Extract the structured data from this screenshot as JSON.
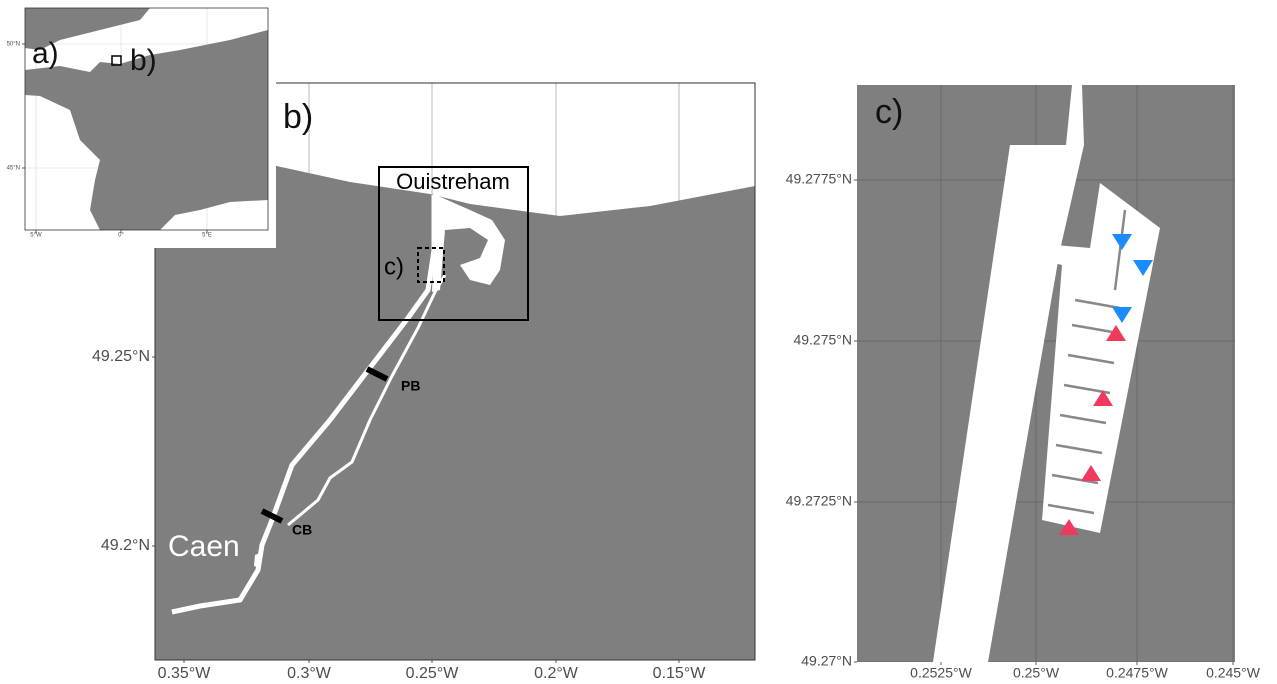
{
  "panels": {
    "a": {
      "label": "a)",
      "inset_label": "b)",
      "xticks": [
        "5°W",
        "0°",
        "5°E"
      ],
      "yticks": [
        "50°N",
        "45°N"
      ]
    },
    "b": {
      "label": "b)",
      "inset_label": "c)",
      "places": [
        "Ouistreham",
        "Caen"
      ],
      "sites": [
        "PB",
        "CB"
      ],
      "xticks": [
        "0.35°W",
        "0.3°W",
        "0.25°W",
        "0.2°W",
        "0.15°W"
      ],
      "yticks": [
        "49.25°N",
        "49.2°N"
      ]
    },
    "c": {
      "label": "c)",
      "xticks": [
        "0.2525°W",
        "0.25°W",
        "0.2475°W",
        "0.245°W"
      ],
      "yticks": [
        "49.2775°N",
        "49.275°N",
        "49.2725°N",
        "49.27°N"
      ]
    }
  }
}
